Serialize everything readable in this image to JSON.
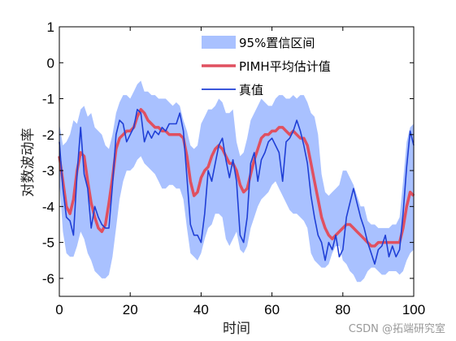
{
  "chart_data": {
    "type": "line",
    "xlabel": "时间",
    "ylabel": "对数波动率",
    "xlim": [
      0,
      100
    ],
    "ylim": [
      -6.5,
      1
    ],
    "xticks": [
      0,
      20,
      40,
      60,
      80,
      100
    ],
    "yticks": [
      1,
      0,
      -1,
      -2,
      -3,
      -4,
      -5,
      -6
    ],
    "grid": false,
    "legend_placement": "top-center",
    "x": [
      0,
      1,
      2,
      3,
      4,
      5,
      6,
      7,
      8,
      9,
      10,
      11,
      12,
      13,
      14,
      15,
      16,
      17,
      18,
      19,
      20,
      21,
      22,
      23,
      24,
      25,
      26,
      27,
      28,
      29,
      30,
      31,
      32,
      33,
      34,
      35,
      36,
      37,
      38,
      39,
      40,
      41,
      42,
      43,
      44,
      45,
      46,
      47,
      48,
      49,
      50,
      51,
      52,
      53,
      54,
      55,
      56,
      57,
      58,
      59,
      60,
      61,
      62,
      63,
      64,
      65,
      66,
      67,
      68,
      69,
      70,
      71,
      72,
      73,
      74,
      75,
      76,
      77,
      78,
      79,
      80,
      81,
      82,
      83,
      84,
      85,
      86,
      87,
      88,
      89,
      90,
      91,
      92,
      93,
      94,
      95,
      96,
      97,
      98,
      99,
      100
    ],
    "series": [
      {
        "name": "95%置信区间",
        "kind": "band",
        "color": "#a9c1ff",
        "upper": [
          -1.7,
          -2.3,
          -2.2,
          -2.0,
          -1.6,
          -1.7,
          -1.3,
          -1.2,
          -1.5,
          -1.4,
          -1.8,
          -1.9,
          -2.0,
          -2.3,
          -2.4,
          -2.0,
          -1.4,
          -1.1,
          -0.9,
          -0.9,
          -1.0,
          -0.8,
          -0.6,
          -0.5,
          -0.8,
          -0.8,
          -0.9,
          -0.9,
          -1.0,
          -1.0,
          -1.0,
          -1.1,
          -1.2,
          -1.1,
          -1.2,
          -1.6,
          -1.9,
          -2.3,
          -2.4,
          -2.3,
          -1.7,
          -1.5,
          -1.3,
          -1.3,
          -1.2,
          -1.0,
          -1.1,
          -1.4,
          -1.4,
          -1.3,
          -2.2,
          -2.6,
          -2.5,
          -2.1,
          -1.6,
          -1.4,
          -1.2,
          -1.0,
          -1.1,
          -1.2,
          -1.2,
          -1.0,
          -0.9,
          -0.9,
          -1.0,
          -1.0,
          -0.9,
          -1.0,
          -0.9,
          -0.9,
          -1.1,
          -1.4,
          -1.5,
          -2.0,
          -3.1,
          -3.6,
          -3.7,
          -3.6,
          -3.5,
          -3.4,
          -3.0,
          -3.0,
          -3.2,
          -3.4,
          -3.7,
          -4.0,
          -4.0,
          -4.4,
          -4.5,
          -4.5,
          -4.6,
          -4.6,
          -4.6,
          -4.6,
          -4.5,
          -4.5,
          -4.3,
          -3.3,
          -2.2,
          -1.8,
          -1.7
        ],
        "lower": [
          -3.3,
          -4.7,
          -5.3,
          -5.4,
          -5.4,
          -5.1,
          -4.7,
          -4.9,
          -5.3,
          -5.5,
          -5.8,
          -5.9,
          -6.0,
          -6.0,
          -5.9,
          -5.4,
          -4.6,
          -3.8,
          -3.3,
          -3.0,
          -3.0,
          -2.9,
          -2.7,
          -2.6,
          -2.8,
          -2.9,
          -3.0,
          -3.1,
          -3.3,
          -3.5,
          -3.5,
          -3.4,
          -3.4,
          -3.5,
          -3.5,
          -3.8,
          -4.6,
          -5.3,
          -5.4,
          -5.5,
          -5.3,
          -4.9,
          -4.6,
          -4.5,
          -4.2,
          -4.2,
          -4.3,
          -4.9,
          -5.1,
          -4.9,
          -4.7,
          -5.2,
          -5.3,
          -5.1,
          -4.6,
          -4.3,
          -4.0,
          -3.8,
          -3.7,
          -3.6,
          -3.4,
          -3.3,
          -3.5,
          -3.7,
          -3.9,
          -4.1,
          -4.2,
          -4.2,
          -4.3,
          -4.4,
          -4.6,
          -5.3,
          -5.5,
          -5.6,
          -5.7,
          -5.7,
          -5.6,
          -5.3,
          -5.1,
          -5.1,
          -5.5,
          -5.6,
          -5.8,
          -5.9,
          -6.1,
          -6.1,
          -6.0,
          -5.8,
          -5.7,
          -5.7,
          -5.8,
          -5.9,
          -5.9,
          -5.8,
          -5.8,
          -5.8,
          -5.9,
          -5.8,
          -5.5,
          -5.3,
          -5.2
        ]
      },
      {
        "name": "PIMH平均估计值",
        "kind": "line",
        "color": "#e05060",
        "values": [
          -2.6,
          -3.3,
          -4.0,
          -4.2,
          -3.8,
          -3.0,
          -2.5,
          -2.6,
          -3.3,
          -3.9,
          -4.3,
          -4.6,
          -4.7,
          -4.5,
          -3.9,
          -3.2,
          -2.4,
          -2.1,
          -2.0,
          -1.9,
          -1.9,
          -1.8,
          -1.5,
          -1.3,
          -1.4,
          -1.6,
          -1.7,
          -1.8,
          -1.8,
          -1.9,
          -1.9,
          -2.0,
          -2.0,
          -2.0,
          -2.0,
          -2.1,
          -2.6,
          -3.3,
          -3.7,
          -3.6,
          -3.2,
          -3.0,
          -2.9,
          -2.6,
          -2.4,
          -2.3,
          -2.4,
          -2.6,
          -2.8,
          -2.8,
          -3.0,
          -3.4,
          -3.6,
          -3.5,
          -3.1,
          -2.7,
          -2.4,
          -2.1,
          -2.0,
          -2.0,
          -1.9,
          -1.9,
          -1.8,
          -1.8,
          -1.9,
          -2.0,
          -1.9,
          -2.0,
          -2.1,
          -2.1,
          -2.3,
          -2.8,
          -3.3,
          -3.8,
          -4.3,
          -4.6,
          -4.8,
          -4.9,
          -4.8,
          -4.7,
          -4.6,
          -4.5,
          -4.5,
          -4.6,
          -4.7,
          -4.8,
          -4.9,
          -5.0,
          -5.1,
          -5.1,
          -5.0,
          -5.0,
          -5.0,
          -5.0,
          -5.0,
          -5.0,
          -5.0,
          -4.6,
          -4.0,
          -3.6,
          -3.7
        ]
      },
      {
        "name": "真值",
        "kind": "line",
        "color": "#1f3fd6",
        "values": [
          -2.2,
          -3.5,
          -4.3,
          -4.4,
          -4.8,
          -3.1,
          -1.8,
          -3.1,
          -3.5,
          -4.6,
          -4.0,
          -4.3,
          -4.5,
          -4.6,
          -4.6,
          -3.4,
          -2.0,
          -1.6,
          -1.7,
          -2.2,
          -2.0,
          -1.8,
          -1.3,
          -1.4,
          -2.2,
          -1.9,
          -2.1,
          -1.9,
          -2.0,
          -1.8,
          -1.9,
          -1.7,
          -1.7,
          -1.7,
          -1.4,
          -1.9,
          -3.2,
          -4.5,
          -4.8,
          -4.8,
          -5.0,
          -4.2,
          -3.0,
          -3.3,
          -2.8,
          -2.3,
          -2.1,
          -2.7,
          -3.2,
          -2.7,
          -3.3,
          -4.8,
          -5.0,
          -4.3,
          -2.8,
          -2.5,
          -3.3,
          -2.7,
          -2.5,
          -2.2,
          -2.1,
          -2.3,
          -2.5,
          -3.3,
          -2.2,
          -2.1,
          -1.9,
          -1.6,
          -1.9,
          -2.3,
          -2.8,
          -3.7,
          -4.3,
          -4.8,
          -5.0,
          -5.5,
          -5.0,
          -5.2,
          -4.8,
          -5.4,
          -5.2,
          -4.3,
          -3.9,
          -3.5,
          -3.9,
          -4.3,
          -4.6,
          -5.0,
          -5.3,
          -5.6,
          -5.2,
          -5.1,
          -4.8,
          -5.4,
          -5.1,
          -5.4,
          -5.2,
          -4.2,
          -2.9,
          -1.9,
          -2.3
        ]
      }
    ]
  },
  "watermark": "CSDN @拓端研究室"
}
